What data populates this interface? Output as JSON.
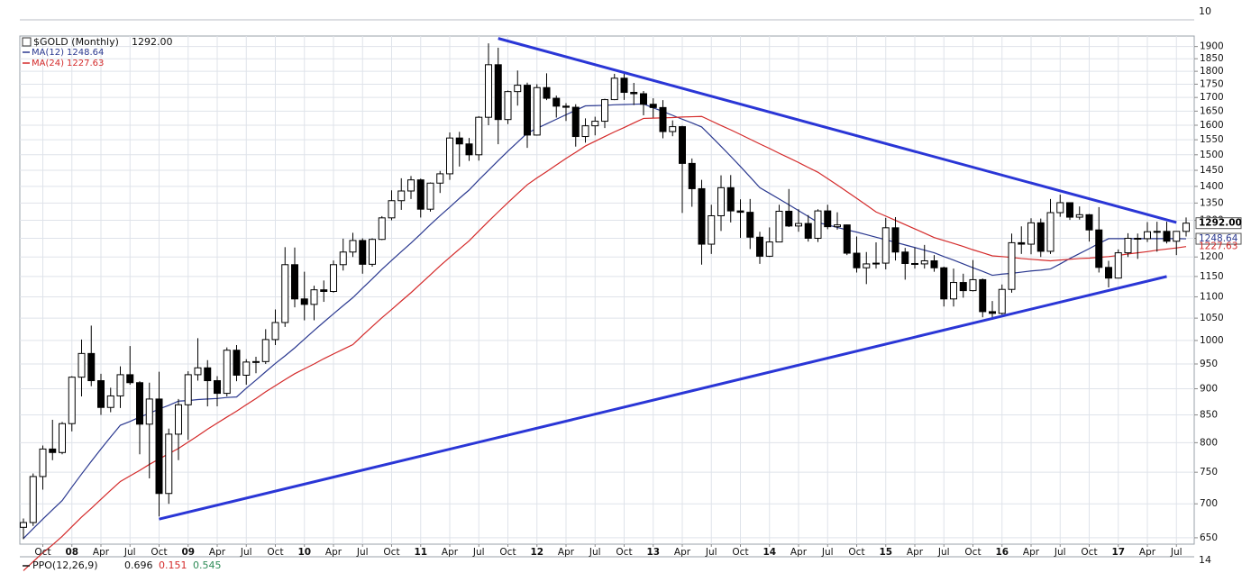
{
  "chart_data": {
    "type": "candlestick",
    "candles": {
      "name": "$GOLD (Monthly)",
      "last_label": "1292.00",
      "up_color": "#ffffff",
      "down_color": "#000000",
      "open": [
        665,
        672,
        743,
        789,
        783,
        834,
        923,
        972,
        916,
        864,
        886,
        928,
        912,
        833,
        880,
        716,
        815,
        869,
        928,
        942,
        916,
        891,
        979,
        927,
        954,
        955,
        1002,
        1040,
        1180,
        1095,
        1082,
        1117,
        1113,
        1180,
        1213,
        1244,
        1181,
        1247,
        1307,
        1357,
        1386,
        1420,
        1332,
        1410,
        1439,
        1556,
        1536,
        1500,
        1628,
        1826,
        1620,
        1722,
        1746,
        1566,
        1737,
        1697,
        1668,
        1664,
        1561,
        1598,
        1614,
        1692,
        1773,
        1719,
        1714,
        1675,
        1663,
        1578,
        1595,
        1472,
        1393,
        1234,
        1313,
        1396,
        1327,
        1323,
        1253,
        1202,
        1240,
        1326,
        1284,
        1291,
        1250,
        1327,
        1282,
        1287,
        1210,
        1172,
        1182,
        1184,
        1279,
        1213,
        1183,
        1182,
        1190,
        1172,
        1095,
        1135,
        1115,
        1142,
        1065,
        1061,
        1118,
        1238,
        1234,
        1293,
        1215,
        1322,
        1351,
        1309,
        1316,
        1273,
        1173,
        1146,
        1211,
        1250,
        1249,
        1268,
        1269,
        1242,
        1269
      ],
      "high": [
        678,
        748,
        795,
        841,
        837,
        925,
        1002,
        1033,
        930,
        902,
        945,
        988,
        915,
        912,
        934,
        825,
        880,
        935,
        1005,
        958,
        925,
        985,
        990,
        960,
        965,
        1025,
        1070,
        1226,
        1225,
        1162,
        1127,
        1140,
        1191,
        1249,
        1265,
        1250,
        1250,
        1312,
        1388,
        1425,
        1432,
        1424,
        1412,
        1448,
        1575,
        1577,
        1556,
        1632,
        1913,
        1895,
        1726,
        1803,
        1756,
        1750,
        1792,
        1707,
        1679,
        1675,
        1624,
        1630,
        1695,
        1790,
        1796,
        1755,
        1724,
        1697,
        1690,
        1617,
        1598,
        1488,
        1420,
        1345,
        1434,
        1435,
        1361,
        1362,
        1268,
        1280,
        1345,
        1392,
        1332,
        1315,
        1332,
        1345,
        1323,
        1288,
        1255,
        1213,
        1239,
        1307,
        1309,
        1224,
        1225,
        1232,
        1205,
        1175,
        1170,
        1157,
        1192,
        1145,
        1090,
        1130,
        1263,
        1283,
        1306,
        1305,
        1362,
        1375,
        1352,
        1340,
        1318,
        1338,
        1190,
        1220,
        1264,
        1263,
        1295,
        1296,
        1296,
        1270,
        1308
      ],
      "low": [
        648,
        667,
        722,
        770,
        780,
        820,
        885,
        905,
        850,
        855,
        863,
        908,
        780,
        740,
        681,
        700,
        770,
        805,
        916,
        866,
        866,
        885,
        915,
        908,
        931,
        950,
        990,
        1030,
        1075,
        1045,
        1045,
        1088,
        1110,
        1165,
        1200,
        1157,
        1175,
        1245,
        1300,
        1330,
        1362,
        1308,
        1325,
        1380,
        1420,
        1462,
        1480,
        1481,
        1600,
        1535,
        1604,
        1670,
        1523,
        1564,
        1690,
        1627,
        1615,
        1527,
        1540,
        1565,
        1590,
        1690,
        1691,
        1672,
        1635,
        1627,
        1555,
        1562,
        1321,
        1339,
        1180,
        1208,
        1270,
        1294,
        1251,
        1221,
        1182,
        1200,
        1239,
        1281,
        1268,
        1241,
        1240,
        1275,
        1274,
        1205,
        1160,
        1131,
        1170,
        1168,
        1191,
        1142,
        1170,
        1170,
        1162,
        1077,
        1077,
        1098,
        1113,
        1052,
        1046,
        1058,
        1110,
        1208,
        1207,
        1200,
        1208,
        1310,
        1301,
        1302,
        1241,
        1160,
        1123,
        1145,
        1200,
        1195,
        1240,
        1214,
        1236,
        1205,
        1255
      ],
      "close": [
        672,
        743,
        789,
        783,
        834,
        923,
        972,
        916,
        864,
        886,
        928,
        912,
        833,
        880,
        716,
        815,
        869,
        928,
        942,
        916,
        891,
        979,
        927,
        954,
        955,
        1002,
        1040,
        1180,
        1095,
        1082,
        1117,
        1113,
        1180,
        1213,
        1244,
        1181,
        1247,
        1307,
        1357,
        1386,
        1420,
        1332,
        1410,
        1439,
        1556,
        1536,
        1500,
        1628,
        1826,
        1620,
        1722,
        1746,
        1566,
        1737,
        1697,
        1668,
        1664,
        1561,
        1598,
        1614,
        1692,
        1773,
        1719,
        1714,
        1675,
        1663,
        1578,
        1595,
        1472,
        1393,
        1234,
        1313,
        1396,
        1327,
        1323,
        1253,
        1202,
        1240,
        1326,
        1284,
        1291,
        1250,
        1327,
        1282,
        1287,
        1210,
        1172,
        1182,
        1184,
        1279,
        1213,
        1183,
        1182,
        1190,
        1172,
        1095,
        1135,
        1115,
        1142,
        1065,
        1061,
        1118,
        1238,
        1234,
        1293,
        1215,
        1322,
        1351,
        1309,
        1316,
        1273,
        1173,
        1146,
        1211,
        1250,
        1249,
        1268,
        1269,
        1242,
        1269,
        1292
      ]
    },
    "categories": [
      null,
      null,
      "Oct",
      null,
      null,
      "08",
      null,
      null,
      "Apr",
      null,
      null,
      "Jul",
      null,
      null,
      "Oct",
      null,
      null,
      "09",
      null,
      null,
      "Apr",
      null,
      null,
      "Jul",
      null,
      null,
      "Oct",
      null,
      null,
      "10",
      null,
      null,
      "Apr",
      null,
      null,
      "Jul",
      null,
      null,
      "Oct",
      null,
      null,
      "11",
      null,
      null,
      "Apr",
      null,
      null,
      "Jul",
      null,
      null,
      "Oct",
      null,
      null,
      "12",
      null,
      null,
      "Apr",
      null,
      null,
      "Jul",
      null,
      null,
      "Oct",
      null,
      null,
      "13",
      null,
      null,
      "Apr",
      null,
      null,
      "Jul",
      null,
      null,
      "Oct",
      null,
      null,
      "14",
      null,
      null,
      "Apr",
      null,
      null,
      "Jul",
      null,
      null,
      "Oct",
      null,
      null,
      "15",
      null,
      null,
      "Apr",
      null,
      null,
      "Jul",
      null,
      null,
      "Oct",
      null,
      null,
      "16",
      null,
      null,
      "Apr",
      null,
      null,
      "Jul",
      null,
      null,
      "Oct",
      null,
      null,
      "17",
      null,
      null,
      "Apr",
      null,
      null,
      "Jul",
      null
    ],
    "series": [
      {
        "name": "MA(12)",
        "color": "#2b3990",
        "values": [
          649,
          663,
          677,
          691,
          705,
          726,
          747,
          768,
          789,
          810,
          831,
          838,
          846,
          853,
          861,
          868,
          876,
          877,
          879,
          880,
          881,
          883,
          884,
          901,
          917,
          934,
          951,
          967,
          984,
          1003,
          1022,
          1041,
          1060,
          1079,
          1098,
          1121,
          1144,
          1168,
          1191,
          1214,
          1237,
          1262,
          1288,
          1313,
          1338,
          1364,
          1389,
          1420,
          1450,
          1481,
          1512,
          1542,
          1573,
          1589,
          1605,
          1621,
          1637,
          1653,
          1669,
          1670,
          1671,
          1673,
          1674,
          1675,
          1676,
          1662,
          1649,
          1635,
          1621,
          1608,
          1594,
          1561,
          1528,
          1495,
          1462,
          1429,
          1396,
          1379,
          1362,
          1345,
          1328,
          1311,
          1294,
          1287,
          1280,
          1273,
          1267,
          1260,
          1253,
          1246,
          1239,
          1232,
          1225,
          1218,
          1211,
          1201,
          1192,
          1182,
          1172,
          1163,
          1153,
          1156,
          1158,
          1161,
          1164,
          1166,
          1169,
          1182,
          1196,
          1209,
          1222,
          1236,
          1249,
          1249,
          1249,
          1249,
          1249,
          1249,
          1249,
          1249,
          1248.64
        ]
      },
      {
        "name": "MA(24)",
        "color": "#d42a2a",
        "values": [
          605,
          617,
          629,
          640,
          652,
          666,
          680,
          693,
          707,
          721,
          735,
          744,
          753,
          763,
          772,
          781,
          790,
          801,
          812,
          824,
          835,
          846,
          857,
          869,
          881,
          894,
          906,
          918,
          930,
          940,
          950,
          961,
          971,
          981,
          991,
          1011,
          1031,
          1051,
          1070,
          1090,
          1110,
          1132,
          1154,
          1177,
          1199,
          1221,
          1243,
          1270,
          1297,
          1324,
          1351,
          1378,
          1405,
          1426,
          1446,
          1467,
          1488,
          1508,
          1529,
          1545,
          1561,
          1577,
          1592,
          1608,
          1624,
          1625,
          1626,
          1627,
          1629,
          1630,
          1631,
          1615,
          1599,
          1584,
          1568,
          1552,
          1536,
          1521,
          1505,
          1490,
          1475,
          1459,
          1444,
          1424,
          1404,
          1384,
          1364,
          1344,
          1324,
          1312,
          1300,
          1288,
          1276,
          1264,
          1252,
          1244,
          1236,
          1228,
          1219,
          1211,
          1203,
          1201,
          1199,
          1196,
          1194,
          1192,
          1190,
          1192,
          1194,
          1196,
          1197,
          1199,
          1201,
          1204,
          1208,
          1211,
          1214,
          1218,
          1221,
          1224,
          1227.63
        ]
      }
    ],
    "trendlines": [
      {
        "color": "#2a36d6",
        "x": [
          49,
          119
        ],
        "y": [
          1934,
          1294
        ]
      },
      {
        "color": "#2a36d6",
        "x": [
          14,
          118
        ],
        "y": [
          677,
          1150
        ]
      }
    ],
    "log_scale": true,
    "grid": true,
    "ylim": [
      641,
      1944
    ],
    "yticks": [
      650,
      700,
      750,
      800,
      850,
      900,
      950,
      1000,
      1050,
      1100,
      1150,
      1200,
      1250,
      1300,
      1350,
      1400,
      1450,
      1500,
      1550,
      1600,
      1650,
      1700,
      1750,
      1800,
      1850,
      1900
    ],
    "upper_panel_tick": 10,
    "lower_panel_tick": 14,
    "ppo": {
      "name": "PPO(12,26,9)",
      "values": [
        0.696,
        0.151,
        0.545
      ],
      "colors": [
        "#111111",
        "#d42a2a",
        "#2e8b57"
      ]
    }
  }
}
